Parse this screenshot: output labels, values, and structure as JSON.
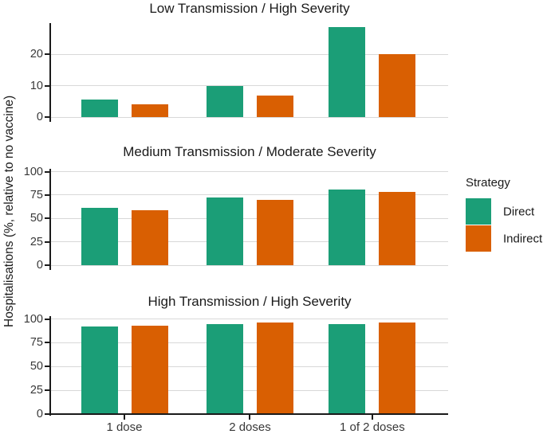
{
  "chart_data": {
    "type": "bar",
    "title": "",
    "ylabel": "Hospitalisations (%, relative to no vaccine)",
    "xlabel": "",
    "categories": [
      "1 dose",
      "2 doses",
      "1 of 2 doses"
    ],
    "legend": {
      "title": "Strategy",
      "position": "right",
      "entries": [
        {
          "label": "Direct",
          "color": "#1B9E77"
        },
        {
          "label": "Indirect",
          "color": "#D95F02"
        }
      ]
    },
    "grid": "major-y",
    "panels": [
      {
        "title": "Low Transmission / High Severity",
        "ylim": [
          0,
          30
        ],
        "yticks": [
          0,
          10,
          20
        ],
        "display_max": 30,
        "series": [
          {
            "name": "Direct",
            "values": [
              5.5,
              10,
              28.7
            ]
          },
          {
            "name": "Indirect",
            "values": [
              4,
              7,
              20
            ]
          }
        ]
      },
      {
        "title": "Medium Transmission / Moderate Severity",
        "ylim": [
          0,
          100
        ],
        "yticks": [
          0,
          25,
          50,
          75,
          100
        ],
        "display_max": 103,
        "series": [
          {
            "name": "Direct",
            "values": [
              61,
              72,
              81
            ]
          },
          {
            "name": "Indirect",
            "values": [
              59,
              70,
              78
            ]
          }
        ]
      },
      {
        "title": "High Transmission / High Severity",
        "ylim": [
          0,
          100
        ],
        "yticks": [
          0,
          25,
          50,
          75,
          100
        ],
        "display_max": 103,
        "series": [
          {
            "name": "Direct",
            "values": [
              92,
              95,
              95
            ]
          },
          {
            "name": "Indirect",
            "values": [
              93,
              96,
              96
            ]
          }
        ]
      }
    ]
  },
  "colors": {
    "direct": "#1B9E77",
    "indirect": "#D95F02",
    "gridline": "#D8D8D8",
    "axis": "#1A1A1A",
    "title_text": "#1A1A1A",
    "tick_text": "#383838",
    "background": "#FFFFFF"
  }
}
